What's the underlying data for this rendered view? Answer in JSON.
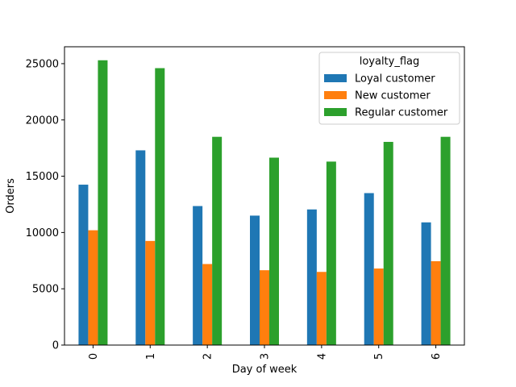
{
  "chart_data": {
    "type": "bar",
    "xlabel": "Day of week",
    "ylabel": "Orders",
    "categories": [
      "0",
      "1",
      "2",
      "3",
      "4",
      "5",
      "6"
    ],
    "ylim": [
      0,
      26500
    ],
    "yticks": [
      0,
      5000,
      10000,
      15000,
      20000,
      25000
    ],
    "legend": {
      "title": "loyalty_flag",
      "position": "upper right"
    },
    "series": [
      {
        "name": "Loyal customer",
        "color": "#1f77b4",
        "values": [
          14250,
          17300,
          12350,
          11500,
          12050,
          13500,
          10900
        ]
      },
      {
        "name": "New customer",
        "color": "#ff7f0e",
        "values": [
          10200,
          9250,
          7200,
          6650,
          6500,
          6800,
          7450
        ]
      },
      {
        "name": "Regular customer",
        "color": "#2ca02c",
        "values": [
          25300,
          24600,
          18500,
          16650,
          16300,
          18050,
          18500
        ]
      }
    ]
  }
}
